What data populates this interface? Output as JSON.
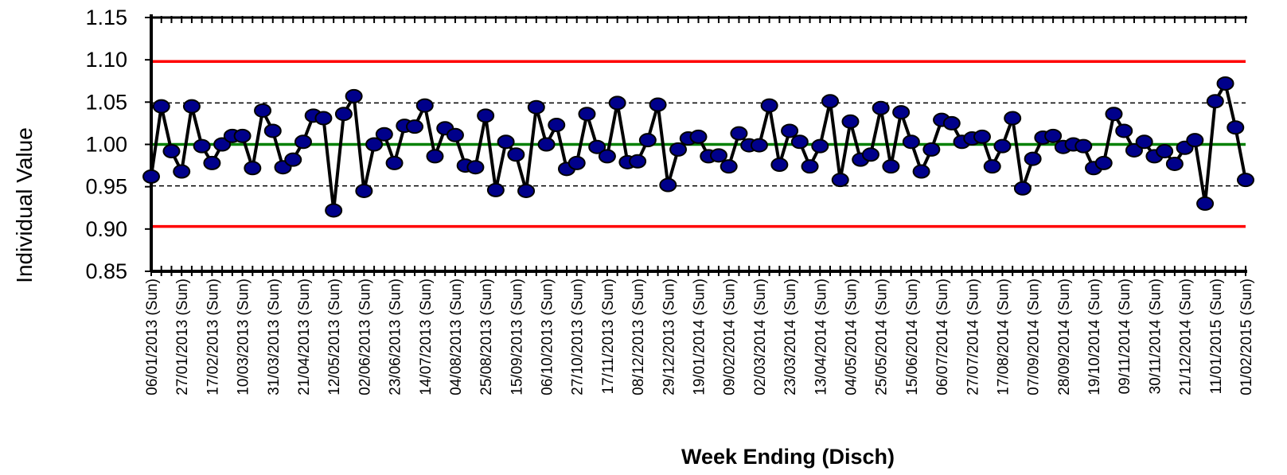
{
  "chart_data": {
    "type": "line",
    "title": "",
    "xlabel": "Week Ending (Disch)",
    "ylabel": "Individual Value",
    "ylim": [
      0.85,
      1.15
    ],
    "yticks": [
      "0.85",
      "0.90",
      "0.95",
      "1.00",
      "1.05",
      "1.10",
      "1.15"
    ],
    "grid": false,
    "x_tick_labels": [
      "06/01/2013 (Sun)",
      "27/01/2013 (Sun)",
      "17/02/2013 (Sun)",
      "10/03/2013 (Sun)",
      "31/03/2013 (Sun)",
      "21/04/2013 (Sun)",
      "12/05/2013 (Sun)",
      "02/06/2013 (Sun)",
      "23/06/2013 (Sun)",
      "14/07/2013 (Sun)",
      "04/08/2013 (Sun)",
      "25/08/2013 (Sun)",
      "15/09/2013 (Sun)",
      "06/10/2013 (Sun)",
      "27/10/2013 (Sun)",
      "17/11/2013 (Sun)",
      "08/12/2013 (Sun)",
      "29/12/2013 (Sun)",
      "19/01/2014 (Sun)",
      "09/02/2014 (Sun)",
      "02/03/2014 (Sun)",
      "23/03/2014 (Sun)",
      "13/04/2014 (Sun)",
      "04/05/2014 (Sun)",
      "25/05/2014 (Sun)",
      "15/06/2014 (Sun)",
      "06/07/2014 (Sun)",
      "27/07/2014 (Sun)",
      "17/08/2014 (Sun)",
      "07/09/2014 (Sun)",
      "28/09/2014 (Sun)",
      "19/10/2014 (Sun)",
      "09/11/2014 (Sun)",
      "30/11/2014 (Sun)",
      "21/12/2014 (Sun)",
      "11/01/2015 (Sun)",
      "01/02/2015 (Sun)"
    ],
    "reference_lines": [
      {
        "role": "upper-control-limit",
        "value": 1.098,
        "color": "#ff0000",
        "style": "solid"
      },
      {
        "role": "centre-line",
        "value": 1.0,
        "color": "#008000",
        "style": "solid"
      },
      {
        "role": "lower-control-limit",
        "value": 0.903,
        "color": "#ff0000",
        "style": "solid"
      },
      {
        "role": "upper-sigma-line",
        "value": 1.049,
        "color": "#000000",
        "style": "dashed"
      },
      {
        "role": "lower-sigma-line",
        "value": 0.951,
        "color": "#000000",
        "style": "dashed"
      }
    ],
    "series": [
      {
        "line_color": "#000000",
        "marker_color": "#00008b",
        "values": [
          0.962,
          1.045,
          0.992,
          0.968,
          1.045,
          0.998,
          0.978,
          1.0,
          1.01,
          1.01,
          0.972,
          1.04,
          1.016,
          0.973,
          0.982,
          1.003,
          1.034,
          1.031,
          0.922,
          1.036,
          1.057,
          0.945,
          1.0,
          1.012,
          0.978,
          1.022,
          1.021,
          1.046,
          0.986,
          1.019,
          1.011,
          0.975,
          0.973,
          1.034,
          0.946,
          1.003,
          0.988,
          0.945,
          1.044,
          1.0,
          1.023,
          0.971,
          0.978,
          1.036,
          0.997,
          0.986,
          1.049,
          0.979,
          0.98,
          1.005,
          1.047,
          0.952,
          0.994,
          1.007,
          1.009,
          0.986,
          0.987,
          0.974,
          1.013,
          0.999,
          0.999,
          1.046,
          0.976,
          1.016,
          1.003,
          0.974,
          0.998,
          1.051,
          0.958,
          1.027,
          0.982,
          0.988,
          1.043,
          0.974,
          1.038,
          1.003,
          0.968,
          0.994,
          1.029,
          1.025,
          1.003,
          1.007,
          1.009,
          0.974,
          0.998,
          1.031,
          0.948,
          0.983,
          1.008,
          1.01,
          0.997,
          1.0,
          0.998,
          0.972,
          0.978,
          1.036,
          1.016,
          0.993,
          1.003,
          0.986,
          0.992,
          0.977,
          0.996,
          1.005,
          0.93,
          1.051,
          1.072,
          1.02,
          0.958
        ]
      }
    ]
  }
}
